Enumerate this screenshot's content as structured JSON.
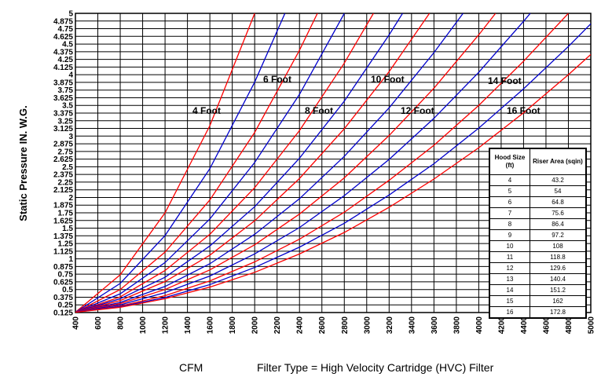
{
  "chart_data": {
    "type": "line",
    "y_label": "Static Pressure IN. W.G.",
    "x_label": "CFM",
    "subtitle": "Filter Type = High Velocity Cartridge (HVC) Filter",
    "xlim": [
      400,
      5000
    ],
    "ylim": [
      0.125,
      5
    ],
    "xticks": [
      400,
      600,
      800,
      1000,
      1200,
      1400,
      1600,
      1800,
      2000,
      2200,
      2400,
      2600,
      2800,
      3000,
      3200,
      3400,
      3600,
      3800,
      4000,
      4200,
      4400,
      4600,
      4800,
      5000
    ],
    "yticks": [
      0.125,
      0.25,
      0.375,
      0.5,
      0.625,
      0.75,
      0.875,
      1,
      1.125,
      1.25,
      1.375,
      1.5,
      1.625,
      1.75,
      1.875,
      2,
      2.125,
      2.25,
      2.375,
      2.5,
      2.625,
      2.75,
      2.875,
      3,
      3.125,
      3.25,
      3.375,
      3.5,
      3.625,
      3.75,
      3.875,
      4,
      4.125,
      4.25,
      4.375,
      4.5,
      4.625,
      4.75,
      4.875,
      5
    ],
    "grid": true,
    "series": [
      {
        "color": "#ff0000",
        "x": [
          400,
          800,
          1200,
          1600,
          2000
        ],
        "values": [
          0.13,
          0.74,
          1.75,
          3.17,
          5
        ]
      },
      {
        "color": "#0000cc",
        "x": [
          400,
          800,
          1200,
          1600,
          2000,
          2270
        ],
        "values": [
          0.13,
          0.6,
          1.38,
          2.47,
          3.88,
          5
        ]
      },
      {
        "color": "#ff0000",
        "x": [
          400,
          800,
          1200,
          1600,
          2000,
          2400,
          2560
        ],
        "values": [
          0.13,
          0.5,
          1.11,
          1.96,
          3.06,
          4.4,
          5
        ]
      },
      {
        "color": "#0000cc",
        "x": [
          400,
          800,
          1200,
          1600,
          2000,
          2400,
          2800
        ],
        "values": [
          0.13,
          0.43,
          0.94,
          1.65,
          2.57,
          3.68,
          5
        ]
      },
      {
        "color": "#ff0000",
        "x": [
          400,
          800,
          1200,
          1600,
          2000,
          2400,
          2800,
          3060
        ],
        "values": [
          0.13,
          0.38,
          0.81,
          1.4,
          2.16,
          3.09,
          4.19,
          5
        ]
      },
      {
        "color": "#0000cc",
        "x": [
          400,
          800,
          1200,
          1600,
          2000,
          2400,
          2800,
          3200,
          3320
        ],
        "values": [
          0.13,
          0.35,
          0.7,
          1.21,
          1.85,
          2.64,
          3.57,
          4.65,
          5
        ]
      },
      {
        "color": "#ff0000",
        "x": [
          400,
          800,
          1200,
          1600,
          2000,
          2400,
          2800,
          3200,
          3560
        ],
        "values": [
          0.13,
          0.32,
          0.63,
          1.06,
          1.62,
          2.31,
          3.12,
          4.05,
          5
        ]
      },
      {
        "color": "#0000cc",
        "x": [
          400,
          800,
          1200,
          1600,
          2000,
          2400,
          2800,
          3200,
          3600,
          3860
        ],
        "values": [
          0.13,
          0.29,
          0.55,
          0.92,
          1.4,
          1.98,
          2.67,
          3.46,
          4.36,
          5
        ]
      },
      {
        "color": "#ff0000",
        "x": [
          400,
          800,
          1200,
          1600,
          2000,
          2400,
          2800,
          3200,
          3600,
          4000,
          4150
        ],
        "values": [
          0.13,
          0.27,
          0.5,
          0.82,
          1.23,
          1.73,
          2.32,
          3.01,
          3.78,
          4.65,
          5
        ]
      },
      {
        "color": "#0000cc",
        "x": [
          400,
          800,
          1200,
          1600,
          2000,
          2400,
          2800,
          3200,
          3600,
          4000,
          4400,
          4460
        ],
        "values": [
          0.13,
          0.25,
          0.45,
          0.72,
          1.08,
          1.51,
          2.03,
          2.62,
          3.29,
          4.04,
          4.87,
          5
        ]
      },
      {
        "color": "#ff0000",
        "x": [
          400,
          800,
          1200,
          1600,
          2000,
          2400,
          2800,
          3200,
          3600,
          4000,
          4400,
          4800
        ],
        "values": [
          0.13,
          0.23,
          0.4,
          0.64,
          0.95,
          1.32,
          1.76,
          2.28,
          2.85,
          3.5,
          4.22,
          5
        ]
      },
      {
        "color": "#0000cc",
        "x": [
          400,
          800,
          1200,
          1600,
          2000,
          2400,
          2800,
          3200,
          3600,
          4000,
          4400,
          4800,
          5000
        ],
        "values": [
          0.13,
          0.22,
          0.37,
          0.58,
          0.86,
          1.19,
          1.58,
          2.04,
          2.55,
          3.13,
          3.77,
          4.46,
          4.83
        ]
      },
      {
        "color": "#ff0000",
        "x": [
          400,
          800,
          1200,
          1600,
          2000,
          2400,
          2800,
          3200,
          3600,
          4000,
          4400,
          4800,
          5000
        ],
        "values": [
          0.13,
          0.21,
          0.35,
          0.54,
          0.78,
          1.08,
          1.43,
          1.84,
          2.3,
          2.81,
          3.38,
          4,
          4.33
        ]
      }
    ],
    "annotations": [
      "4 Foot",
      "6 Foot",
      "8 Foot",
      "10 Foot",
      "12 Foot",
      "14 Foot",
      "16 Foot"
    ],
    "table": {
      "columns": [
        "Hood Size (ft)",
        "Riser Area (sqin)"
      ],
      "rows": [
        [
          4,
          43.2
        ],
        [
          5,
          54
        ],
        [
          6,
          64.8
        ],
        [
          7,
          75.6
        ],
        [
          8,
          86.4
        ],
        [
          9,
          97.2
        ],
        [
          10,
          108
        ],
        [
          11,
          118.8
        ],
        [
          12,
          129.6
        ],
        [
          13,
          140.4
        ],
        [
          14,
          151.2
        ],
        [
          15,
          162
        ],
        [
          16,
          172.8
        ]
      ]
    }
  }
}
